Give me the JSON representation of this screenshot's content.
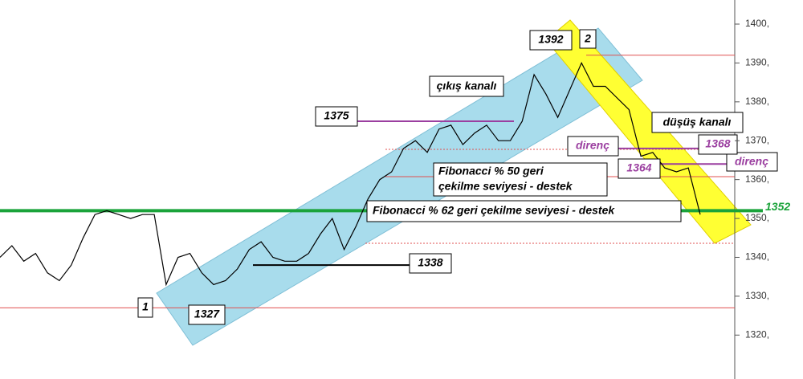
{
  "chart_data": {
    "type": "line",
    "series": [
      {
        "color": "#000000",
        "values": [
          1340,
          1343,
          1339,
          1341,
          1336,
          1334,
          1338,
          1345,
          1351,
          1352,
          1351,
          1350,
          1351,
          1351,
          1333,
          1340,
          1341,
          1336,
          1333,
          1334,
          1337,
          1342,
          1344,
          1340,
          1339,
          1339,
          1341,
          1346,
          1350,
          1342,
          1348,
          1355,
          1360,
          1362,
          1368,
          1370,
          1367,
          1373,
          1374,
          1369,
          1372,
          1374,
          1370,
          1370,
          1375,
          1387,
          1382,
          1376,
          1383,
          1390,
          1384,
          1384,
          1381,
          1378,
          1366,
          1367,
          1363,
          1362,
          1363,
          1351
        ]
      }
    ],
    "ylim": [
      1308.7,
      1406.2
    ],
    "yticks": [
      {
        "value": 1320,
        "label": "1320,"
      },
      {
        "value": 1330,
        "label": "1330,"
      },
      {
        "value": 1340,
        "label": "1340,"
      },
      {
        "value": 1350,
        "label": "1350,"
      },
      {
        "value": 1360,
        "label": "1360,"
      },
      {
        "value": 1370,
        "label": "1370,"
      },
      {
        "value": 1380,
        "label": "1380,"
      },
      {
        "value": 1390,
        "label": "1390,"
      },
      {
        "value": 1400,
        "label": "1400,"
      }
    ],
    "levels": [
      1352,
      1392,
      1375,
      1338,
      1327,
      1368,
      1364
    ],
    "annotations": {
      "exit_channel": "çıkış kanalı",
      "fall_channel": "düşüş kanalı",
      "resistance_1": "direnç",
      "resistance_2": "direnç",
      "fib50": [
        "Fibonacci % 50 geri",
        "çekilme seviyesi - destek"
      ],
      "fib62": "Fibonacci % 62 geri çekilme seviyesi - destek",
      "point_1": "1",
      "point_2": "2"
    }
  }
}
